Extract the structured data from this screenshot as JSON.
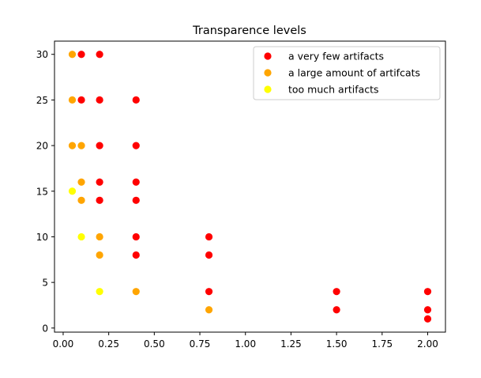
{
  "chart_data": {
    "type": "scatter",
    "title": "Transparence levels",
    "xlabel": "",
    "ylabel": "",
    "xlim": [
      -0.0475,
      2.0975
    ],
    "ylim": [
      -0.45,
      31.45
    ],
    "grid": false,
    "legend_position": "top-right",
    "x_ticks": [
      0.0,
      0.25,
      0.5,
      0.75,
      1.0,
      1.25,
      1.5,
      1.75,
      2.0
    ],
    "x_tick_labels": [
      "0.00",
      "0.25",
      "0.50",
      "0.75",
      "1.00",
      "1.25",
      "1.50",
      "1.75",
      "2.00"
    ],
    "y_ticks": [
      0,
      5,
      10,
      15,
      20,
      25,
      30
    ],
    "y_tick_labels": [
      "0",
      "5",
      "10",
      "15",
      "20",
      "25",
      "30"
    ],
    "series": [
      {
        "name": "a very few artifacts",
        "color": "#ff0000",
        "points": [
          [
            0.1,
            30
          ],
          [
            0.2,
            30
          ],
          [
            0.1,
            25
          ],
          [
            0.2,
            25
          ],
          [
            0.4,
            25
          ],
          [
            0.2,
            20
          ],
          [
            0.4,
            20
          ],
          [
            0.2,
            16
          ],
          [
            0.4,
            16
          ],
          [
            0.2,
            14
          ],
          [
            0.4,
            14
          ],
          [
            0.4,
            10
          ],
          [
            0.8,
            10
          ],
          [
            0.4,
            8
          ],
          [
            0.8,
            8
          ],
          [
            0.8,
            4
          ],
          [
            1.5,
            4
          ],
          [
            2.0,
            4
          ],
          [
            1.5,
            2
          ],
          [
            2.0,
            2
          ],
          [
            2.0,
            1
          ]
        ]
      },
      {
        "name": "a large amount of artifcats",
        "color": "#ffa500",
        "points": [
          [
            0.05,
            30
          ],
          [
            0.05,
            25
          ],
          [
            0.05,
            20
          ],
          [
            0.1,
            20
          ],
          [
            0.1,
            16
          ],
          [
            0.1,
            14
          ],
          [
            0.2,
            10
          ],
          [
            0.2,
            8
          ],
          [
            0.4,
            4
          ],
          [
            0.8,
            2
          ]
        ]
      },
      {
        "name": "too much artifacts",
        "color": "#ffff00",
        "points": [
          [
            0.05,
            15
          ],
          [
            0.1,
            10
          ],
          [
            0.2,
            4
          ]
        ]
      }
    ]
  }
}
